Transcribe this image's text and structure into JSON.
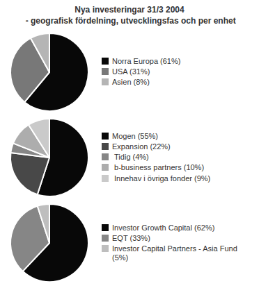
{
  "title": "Nya investeringar 31/3 2004\n - geografisk fördelning, utvecklingsfas och per enhet",
  "chart_data": [
    {
      "type": "pie",
      "categories": [
        "Norra Europa (61%)",
        "USA (31%)",
        "Asien (8%)"
      ],
      "values": [
        61,
        31,
        8
      ],
      "colors": [
        "#080808",
        "#787878",
        "#b5b5b5"
      ],
      "legend": "right"
    },
    {
      "type": "pie",
      "categories": [
        "Mogen (55%)",
        "Expansion (22%)",
        " Tidig (4%)",
        " b-business partners (10%)",
        " Innehav i övriga fonder (9%)"
      ],
      "values": [
        55,
        22,
        4,
        10,
        9
      ],
      "colors": [
        "#080808",
        "#484848",
        "#868686",
        "#adadad",
        "#cacaca"
      ],
      "legend": "right"
    },
    {
      "type": "pie",
      "categories": [
        "Investor Growth Capital (62%)",
        "EQT (33%)",
        "Investor Capital Partners - Asia Fund (5%)"
      ],
      "values": [
        62,
        33,
        5
      ],
      "colors": [
        "#080808",
        "#868686",
        "#bebebe"
      ],
      "legend": "right"
    }
  ]
}
